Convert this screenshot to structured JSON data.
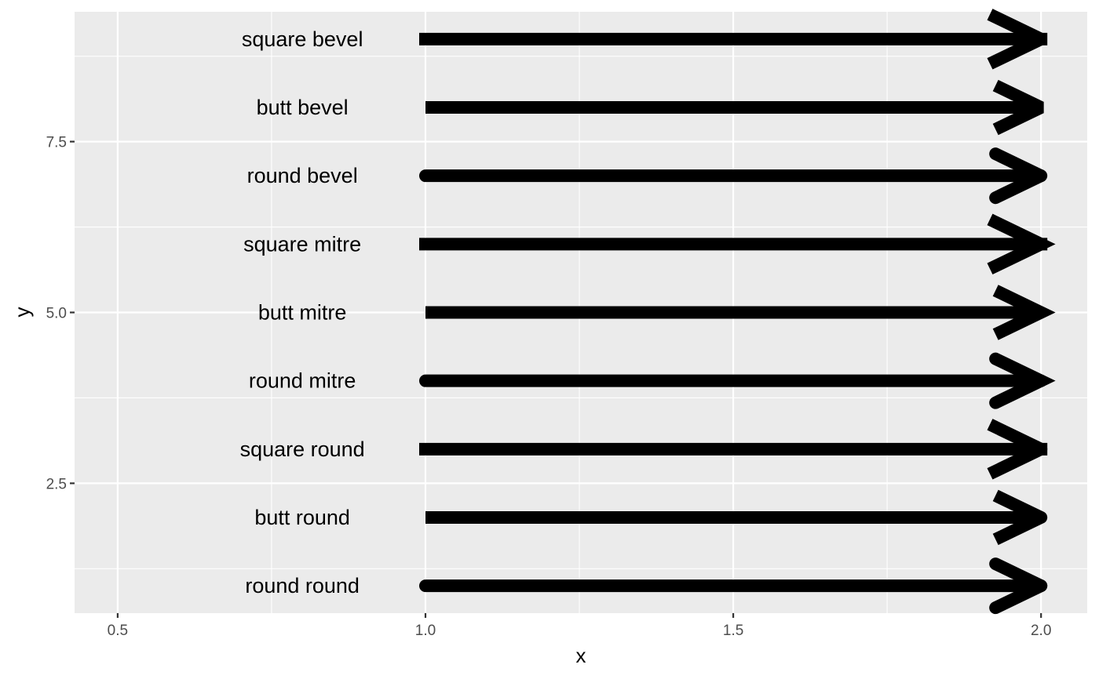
{
  "chart_data": {
    "type": "line",
    "title": "",
    "xlabel": "x",
    "ylabel": "y",
    "xlim": [
      0.43,
      2.075
    ],
    "ylim": [
      0.6,
      9.4
    ],
    "x_ticks": [
      {
        "value": 0.5,
        "label": "0.5"
      },
      {
        "value": 1.0,
        "label": "1.0"
      },
      {
        "value": 1.5,
        "label": "1.5"
      },
      {
        "value": 2.0,
        "label": "2.0"
      }
    ],
    "y_ticks": [
      {
        "value": 2.5,
        "label": "2.5"
      },
      {
        "value": 5.0,
        "label": "5.0"
      },
      {
        "value": 7.5,
        "label": "7.5"
      }
    ],
    "grid": true,
    "segments": [
      {
        "label": "round round",
        "x": 1,
        "xend": 2,
        "y": 1,
        "lineend": "round",
        "linejoin": "round"
      },
      {
        "label": "butt round",
        "x": 1,
        "xend": 2,
        "y": 2,
        "lineend": "butt",
        "linejoin": "round"
      },
      {
        "label": "square round",
        "x": 1,
        "xend": 2,
        "y": 3,
        "lineend": "square",
        "linejoin": "round"
      },
      {
        "label": "round mitre",
        "x": 1,
        "xend": 2,
        "y": 4,
        "lineend": "round",
        "linejoin": "mitre"
      },
      {
        "label": "butt mitre",
        "x": 1,
        "xend": 2,
        "y": 5,
        "lineend": "butt",
        "linejoin": "mitre"
      },
      {
        "label": "square mitre",
        "x": 1,
        "xend": 2,
        "y": 6,
        "lineend": "square",
        "linejoin": "mitre"
      },
      {
        "label": "round bevel",
        "x": 1,
        "xend": 2,
        "y": 7,
        "lineend": "round",
        "linejoin": "bevel"
      },
      {
        "label": "butt bevel",
        "x": 1,
        "xend": 2,
        "y": 8,
        "lineend": "butt",
        "linejoin": "bevel"
      },
      {
        "label": "square bevel",
        "x": 1,
        "xend": 2,
        "y": 9,
        "lineend": "square",
        "linejoin": "bevel"
      }
    ],
    "label_x": 0.8,
    "colors": {
      "panel": "#ebebeb",
      "grid": "#ffffff",
      "segment": "#000000"
    }
  }
}
